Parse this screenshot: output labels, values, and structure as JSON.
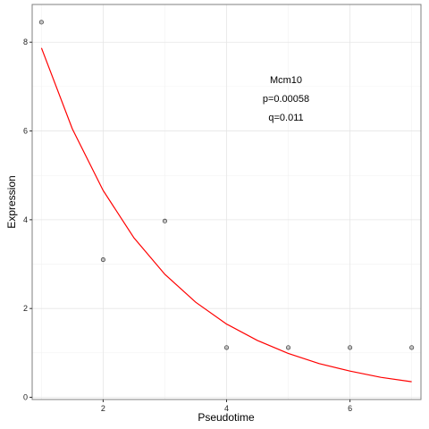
{
  "chart_data": {
    "type": "scatter",
    "title": "",
    "xlabel": "Pseudotime",
    "ylabel": "Expression",
    "xlim": [
      0.85,
      7.15
    ],
    "ylim": [
      -0.05,
      8.85
    ],
    "xticks": [
      2,
      4,
      6
    ],
    "yticks": [
      0,
      2,
      4,
      6,
      8
    ],
    "x_tick_labels": [
      "2",
      "4",
      "6"
    ],
    "y_tick_labels": [
      "0",
      "2",
      "4",
      "6",
      "8"
    ],
    "grid": true,
    "points": {
      "x": [
        1,
        2,
        3,
        4,
        5,
        6,
        7
      ],
      "y": [
        8.45,
        3.1,
        3.97,
        1.12,
        1.12,
        1.12,
        1.12
      ],
      "color": "#808080"
    },
    "fit_curve": {
      "x": [
        1.0,
        1.5,
        2.0,
        2.5,
        3.0,
        3.5,
        4.0,
        4.5,
        5.0,
        5.5,
        6.0,
        6.5,
        7.0
      ],
      "y": [
        7.87,
        6.05,
        4.66,
        3.59,
        2.77,
        2.14,
        1.65,
        1.28,
        0.99,
        0.76,
        0.59,
        0.45,
        0.35
      ],
      "color": "#ff0000"
    },
    "annotations": [
      "Mcm10",
      "p=0.00058",
      "q=0.011"
    ]
  }
}
